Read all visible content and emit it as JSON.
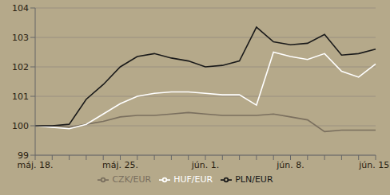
{
  "chart_data": {
    "type": "line",
    "categories": [
      "máj. 18.",
      null,
      null,
      null,
      null,
      "máj. 25.",
      null,
      null,
      null,
      null,
      "jún. 1.",
      null,
      null,
      null,
      null,
      "jún. 8.",
      null,
      null,
      null,
      null,
      "jún. 15."
    ],
    "series": [
      {
        "name": "CZK/EUR",
        "color": "#7a6f5e",
        "values": [
          100.0,
          100.0,
          99.95,
          100.05,
          100.15,
          100.3,
          100.35,
          100.35,
          100.4,
          100.45,
          100.4,
          100.35,
          100.35,
          100.35,
          100.4,
          100.3,
          100.2,
          99.8,
          99.85,
          99.85,
          99.85
        ]
      },
      {
        "name": "HUF/EUR",
        "color": "#ffffff",
        "values": [
          100.0,
          99.95,
          99.9,
          100.05,
          100.4,
          100.75,
          101.0,
          101.1,
          101.15,
          101.15,
          101.1,
          101.05,
          101.05,
          100.7,
          102.5,
          102.35,
          102.25,
          102.45,
          101.85,
          101.65,
          102.1
        ]
      },
      {
        "name": "PLN/EUR",
        "color": "#1a1a1a",
        "values": [
          100.0,
          100.0,
          100.05,
          100.9,
          101.4,
          102.0,
          102.35,
          102.45,
          102.3,
          102.2,
          102.0,
          102.05,
          102.2,
          103.35,
          102.85,
          102.75,
          102.8,
          103.1,
          102.4,
          102.45,
          102.6
        ]
      }
    ],
    "ylim": [
      99,
      104
    ],
    "yticks": [
      99,
      100,
      101,
      102,
      103,
      104
    ],
    "grid": true,
    "legend": "bottom"
  }
}
